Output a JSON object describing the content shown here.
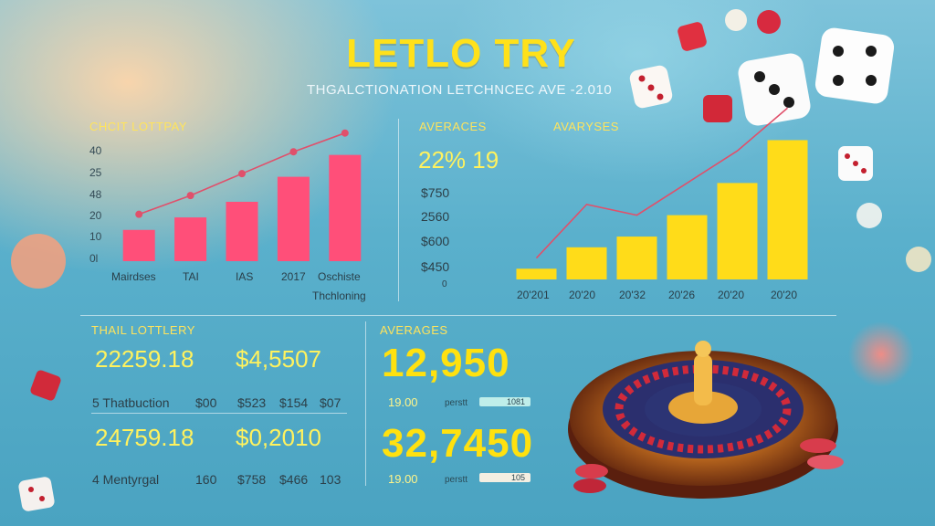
{
  "header": {
    "title": "LETLO TRY",
    "subtitle": "THGALCTIONATION LETCHNCEC AVE -2.010"
  },
  "chart_left": {
    "label": "CHCIT LOTTPAY",
    "yticks": [
      "40",
      "25",
      "48",
      "20",
      "10",
      "0l"
    ],
    "categories": [
      "Mairdses",
      "TAI",
      "IAS",
      "2017",
      "Oschiste"
    ],
    "footer": "Thchloning",
    "bar_color": "#ff4f79",
    "line_color": "#e0506b"
  },
  "chart_right": {
    "label_a": "AVERACES",
    "label_b": "AVARYSES",
    "big_value": "22% 19",
    "money": [
      "$750",
      "2560",
      "$600",
      "$450",
      "0"
    ],
    "categories": [
      "20'201",
      "20'20",
      "20'32",
      "20'26",
      "20'20",
      "20'20"
    ],
    "bar_color": "#ffdc19",
    "line_color": "#e0506b"
  },
  "bottom_left": {
    "label": "THAIL LOTTLERY",
    "row1": {
      "value_a": "22259.18",
      "value_b": "$4,5507",
      "name": "5 Thatbuction",
      "c1": "$00",
      "c2": "$523",
      "c3": "$154",
      "c4": "$07"
    },
    "row2": {
      "value_a": "24759.18",
      "value_b": "$0,2010",
      "name": "4 Mentyrgal",
      "c1": "160",
      "c2": "$758",
      "c3": "$466",
      "c4": "103"
    }
  },
  "bottom_mid": {
    "label": "AVERAGES",
    "block1": {
      "big": "12,950",
      "small": "19.00",
      "tag": "perstt",
      "pill": "1081",
      "pill_color": "#bfeeea"
    },
    "block2": {
      "big": "32,7450",
      "small": "19.00",
      "tag": "perstt",
      "pill": "105",
      "pill_color": "#f4efe2"
    }
  },
  "chart_data": [
    {
      "type": "bar",
      "title": "CHCIT LOTTPAY",
      "categories": [
        "Mairdses",
        "TAI",
        "IAS",
        "2017",
        "Oschiste"
      ],
      "series": [
        {
          "type": "bar",
          "values": [
            10,
            14,
            19,
            27,
            34
          ]
        },
        {
          "type": "line",
          "values": [
            15,
            21,
            28,
            35,
            41
          ]
        }
      ],
      "yticks": [
        "40",
        "25",
        "48",
        "20",
        "10",
        "0l"
      ],
      "ylim": [
        0,
        45
      ],
      "xlabel": "Thchloning",
      "grid": false
    },
    {
      "type": "bar",
      "title": "AVARYSES",
      "categories": [
        "20'201",
        "20'20",
        "20'32",
        "20'26",
        "20'20",
        "20'20"
      ],
      "series": [
        {
          "type": "bar",
          "values": [
            1,
            3,
            4,
            6,
            9,
            13
          ]
        },
        {
          "type": "line",
          "values": [
            2,
            7,
            6,
            9,
            12,
            16
          ]
        }
      ],
      "ylim": [
        0,
        15
      ],
      "grid": false
    }
  ]
}
